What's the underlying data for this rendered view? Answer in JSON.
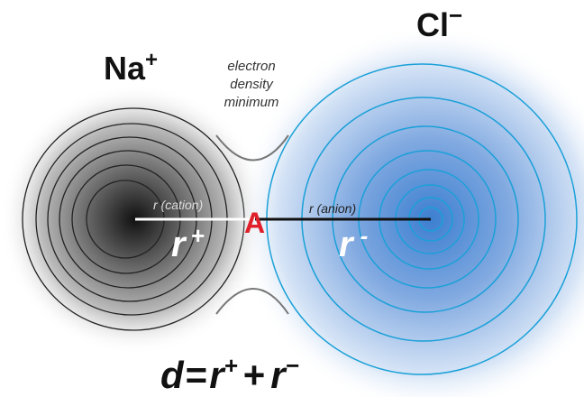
{
  "ions": [
    {
      "symbol": "Na",
      "charge": "+"
    },
    {
      "symbol": "Cl",
      "charge": "−"
    }
  ],
  "annotation": [
    "electron",
    "density",
    "minimum"
  ],
  "labels": {
    "cation": "r (cation)",
    "anion": "r (anion)",
    "point": "A"
  },
  "radii": [
    {
      "symbol": "r",
      "sign": "+"
    },
    {
      "symbol": "r",
      "sign": "-"
    }
  ],
  "equation": {
    "lhs": "d",
    "eq": "=",
    "t1": "r",
    "s1": "+",
    "plus": "+",
    "t2": "r",
    "s2": "−"
  }
}
